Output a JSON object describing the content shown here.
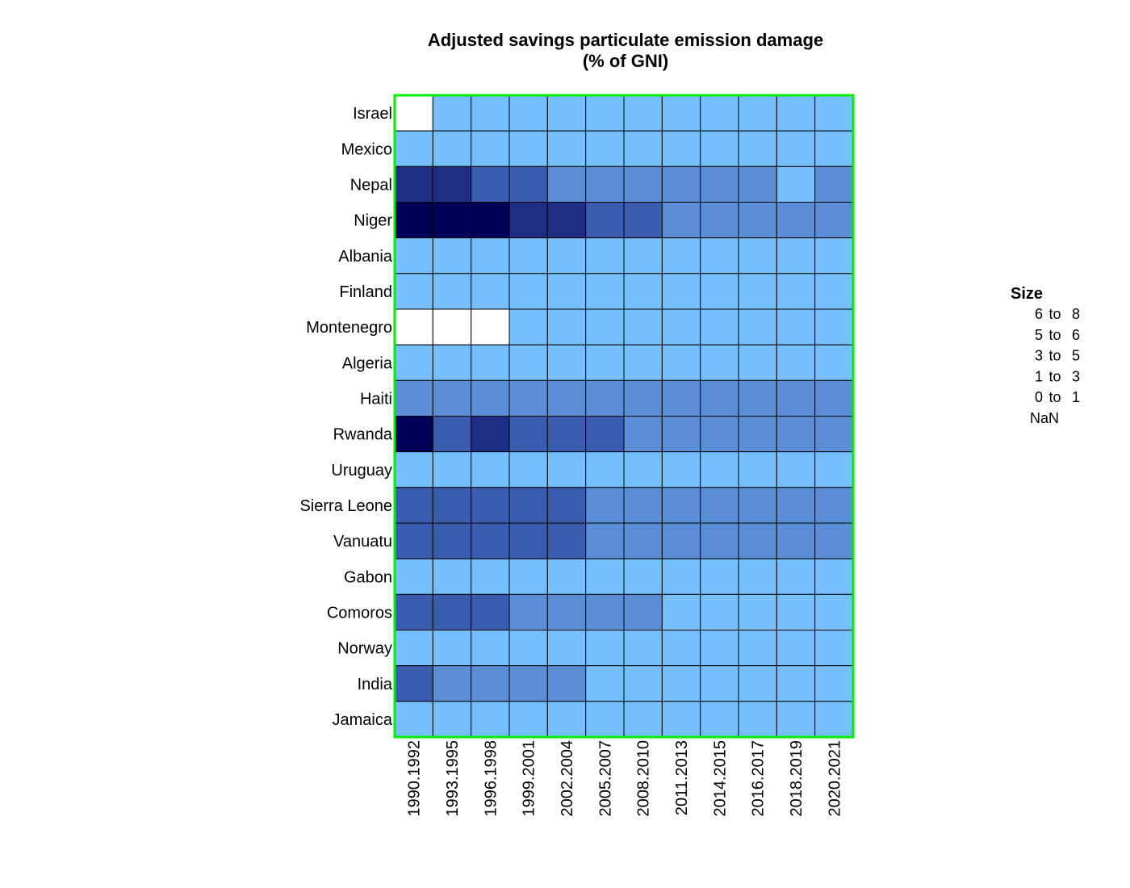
{
  "chart_data": {
    "type": "heatmap",
    "title": "Adjusted savings particulate emission damage",
    "subtitle": "(% of GNI)",
    "rows": [
      "Israel",
      "Mexico",
      "Nepal",
      "Niger",
      "Albania",
      "Finland",
      "Montenegro",
      "Algeria",
      "Haiti",
      "Rwanda",
      "Uruguay",
      "Sierra Leone",
      "Vanuatu",
      "Gabon",
      "Comoros",
      "Norway",
      "India",
      "Jamaica"
    ],
    "columns": [
      "1990.1992",
      "1993.1995",
      "1996.1998",
      "1999.2001",
      "2002.2004",
      "2005.2007",
      "2008.2010",
      "2011.2013",
      "2014.2015",
      "2016.2017",
      "2018.2019",
      "2020.2021"
    ],
    "bins": [
      "NaN",
      "0 to 1",
      "1 to 3",
      "3 to 5",
      "5 to 6",
      "6 to 8"
    ],
    "cells": [
      [
        "NaN",
        "0 to 1",
        "0 to 1",
        "0 to 1",
        "0 to 1",
        "0 to 1",
        "0 to 1",
        "0 to 1",
        "0 to 1",
        "0 to 1",
        "0 to 1",
        "0 to 1"
      ],
      [
        "0 to 1",
        "0 to 1",
        "0 to 1",
        "0 to 1",
        "0 to 1",
        "0 to 1",
        "0 to 1",
        "0 to 1",
        "0 to 1",
        "0 to 1",
        "0 to 1",
        "0 to 1"
      ],
      [
        "5 to 6",
        "5 to 6",
        "3 to 5",
        "3 to 5",
        "1 to 3",
        "1 to 3",
        "1 to 3",
        "1 to 3",
        "1 to 3",
        "1 to 3",
        "0 to 1",
        "1 to 3"
      ],
      [
        "6 to 8",
        "6 to 8",
        "6 to 8",
        "5 to 6",
        "5 to 6",
        "3 to 5",
        "3 to 5",
        "1 to 3",
        "1 to 3",
        "1 to 3",
        "1 to 3",
        "1 to 3"
      ],
      [
        "0 to 1",
        "0 to 1",
        "0 to 1",
        "0 to 1",
        "0 to 1",
        "0 to 1",
        "0 to 1",
        "0 to 1",
        "0 to 1",
        "0 to 1",
        "0 to 1",
        "0 to 1"
      ],
      [
        "0 to 1",
        "0 to 1",
        "0 to 1",
        "0 to 1",
        "0 to 1",
        "0 to 1",
        "0 to 1",
        "0 to 1",
        "0 to 1",
        "0 to 1",
        "0 to 1",
        "0 to 1"
      ],
      [
        "NaN",
        "NaN",
        "NaN",
        "0 to 1",
        "0 to 1",
        "0 to 1",
        "0 to 1",
        "0 to 1",
        "0 to 1",
        "0 to 1",
        "0 to 1",
        "0 to 1"
      ],
      [
        "0 to 1",
        "0 to 1",
        "0 to 1",
        "0 to 1",
        "0 to 1",
        "0 to 1",
        "0 to 1",
        "0 to 1",
        "0 to 1",
        "0 to 1",
        "0 to 1",
        "0 to 1"
      ],
      [
        "1 to 3",
        "1 to 3",
        "1 to 3",
        "1 to 3",
        "1 to 3",
        "1 to 3",
        "1 to 3",
        "1 to 3",
        "1 to 3",
        "1 to 3",
        "1 to 3",
        "1 to 3"
      ],
      [
        "6 to 8",
        "3 to 5",
        "5 to 6",
        "3 to 5",
        "3 to 5",
        "3 to 5",
        "1 to 3",
        "1 to 3",
        "1 to 3",
        "1 to 3",
        "1 to 3",
        "1 to 3"
      ],
      [
        "0 to 1",
        "0 to 1",
        "0 to 1",
        "0 to 1",
        "0 to 1",
        "0 to 1",
        "0 to 1",
        "0 to 1",
        "0 to 1",
        "0 to 1",
        "0 to 1",
        "0 to 1"
      ],
      [
        "3 to 5",
        "3 to 5",
        "3 to 5",
        "3 to 5",
        "3 to 5",
        "1 to 3",
        "1 to 3",
        "1 to 3",
        "1 to 3",
        "1 to 3",
        "1 to 3",
        "1 to 3"
      ],
      [
        "3 to 5",
        "3 to 5",
        "3 to 5",
        "3 to 5",
        "3 to 5",
        "1 to 3",
        "1 to 3",
        "1 to 3",
        "1 to 3",
        "1 to 3",
        "1 to 3",
        "1 to 3"
      ],
      [
        "0 to 1",
        "0 to 1",
        "0 to 1",
        "0 to 1",
        "0 to 1",
        "0 to 1",
        "0 to 1",
        "0 to 1",
        "0 to 1",
        "0 to 1",
        "0 to 1",
        "0 to 1"
      ],
      [
        "3 to 5",
        "3 to 5",
        "3 to 5",
        "1 to 3",
        "1 to 3",
        "1 to 3",
        "1 to 3",
        "0 to 1",
        "0 to 1",
        "0 to 1",
        "0 to 1",
        "0 to 1"
      ],
      [
        "0 to 1",
        "0 to 1",
        "0 to 1",
        "0 to 1",
        "0 to 1",
        "0 to 1",
        "0 to 1",
        "0 to 1",
        "0 to 1",
        "0 to 1",
        "0 to 1",
        "0 to 1"
      ],
      [
        "3 to 5",
        "1 to 3",
        "1 to 3",
        "1 to 3",
        "1 to 3",
        "0 to 1",
        "0 to 1",
        "0 to 1",
        "0 to 1",
        "0 to 1",
        "0 to 1",
        "0 to 1"
      ],
      [
        "0 to 1",
        "0 to 1",
        "0 to 1",
        "0 to 1",
        "0 to 1",
        "0 to 1",
        "0 to 1",
        "0 to 1",
        "0 to 1",
        "0 to 1",
        "0 to 1",
        "0 to 1"
      ]
    ],
    "colors": {
      "NaN": "#ffffff",
      "0 to 1": "#75bfff",
      "1 to 3": "#5a8ed6",
      "3 to 5": "#3a5daf",
      "5 to 6": "#1e2e84",
      "6 to 8": "#000058",
      "frame": "#00ee00",
      "grid": "#000000"
    },
    "legend": {
      "title": "Size",
      "entries": [
        {
          "low": "6",
          "sep": "to",
          "high": "8"
        },
        {
          "low": "5",
          "sep": "to",
          "high": "6"
        },
        {
          "low": "3",
          "sep": "to",
          "high": "5"
        },
        {
          "low": "1",
          "sep": "to",
          "high": "3"
        },
        {
          "low": "0",
          "sep": "to",
          "high": "1"
        },
        {
          "low": "NaN",
          "sep": "",
          "high": ""
        }
      ]
    }
  }
}
